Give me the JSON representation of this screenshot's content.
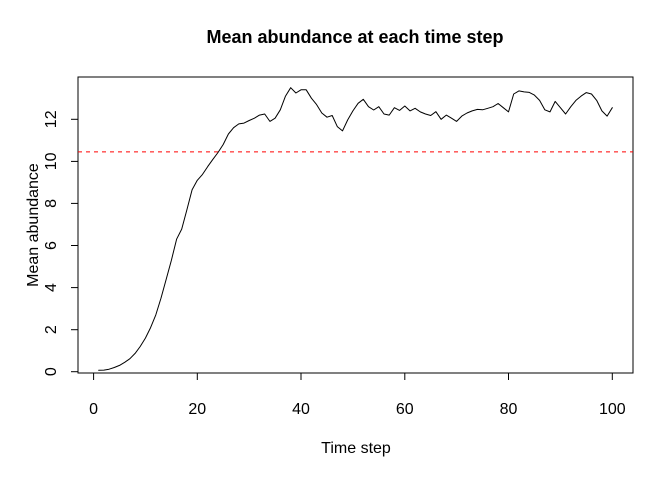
{
  "figure": {
    "background": "#FFFFFF",
    "text_color": "#000000"
  },
  "chart_data": {
    "type": "line",
    "title": "Mean abundance at each time step",
    "xlabel": "Time step",
    "ylabel": "Mean abundance",
    "x_ticks": [
      0,
      20,
      40,
      60,
      80,
      100
    ],
    "y_ticks": [
      0,
      2,
      4,
      6,
      8,
      10,
      12
    ],
    "xlim": [
      -3,
      104
    ],
    "ylim": [
      -0.06,
      14.01
    ],
    "grid": false,
    "box": true,
    "series": [
      {
        "name": "mean abundance",
        "color": "#000000",
        "line_style": "solid",
        "x": [
          1,
          2,
          3,
          4,
          5,
          6,
          7,
          8,
          9,
          10,
          11,
          12,
          13,
          14,
          15,
          16,
          17,
          18,
          19,
          20,
          21,
          22,
          23,
          24,
          25,
          26,
          27,
          28,
          29,
          30,
          31,
          32,
          33,
          34,
          35,
          36,
          37,
          38,
          39,
          40,
          41,
          42,
          43,
          44,
          45,
          46,
          47,
          48,
          49,
          50,
          51,
          52,
          53,
          54,
          55,
          56,
          57,
          58,
          59,
          60,
          61,
          62,
          63,
          64,
          65,
          66,
          67,
          68,
          69,
          70,
          71,
          72,
          73,
          74,
          75,
          76,
          77,
          78,
          79,
          80,
          81,
          82,
          83,
          84,
          85,
          86,
          87,
          88,
          89,
          90,
          91,
          92,
          93,
          94,
          95,
          96,
          97,
          98,
          99,
          100
        ],
        "y": [
          0.07,
          0.08,
          0.12,
          0.2,
          0.3,
          0.45,
          0.62,
          0.87,
          1.2,
          1.6,
          2.1,
          2.7,
          3.5,
          4.4,
          5.3,
          6.3,
          6.78,
          7.7,
          8.65,
          9.1,
          9.38,
          9.75,
          10.1,
          10.42,
          10.8,
          11.3,
          11.6,
          11.78,
          11.82,
          11.94,
          12.05,
          12.2,
          12.25,
          11.9,
          12.05,
          12.45,
          13.1,
          13.5,
          13.25,
          13.4,
          13.4,
          13.0,
          12.7,
          12.3,
          12.1,
          12.18,
          11.65,
          11.45,
          11.97,
          12.4,
          12.76,
          12.95,
          12.6,
          12.44,
          12.6,
          12.25,
          12.2,
          12.55,
          12.42,
          12.63,
          12.4,
          12.52,
          12.35,
          12.25,
          12.18,
          12.36,
          12.0,
          12.2,
          12.05,
          11.9,
          12.15,
          12.3,
          12.4,
          12.47,
          12.45,
          12.52,
          12.6,
          12.75,
          12.55,
          12.35,
          13.2,
          13.35,
          13.3,
          13.28,
          13.15,
          12.9,
          12.45,
          12.35,
          12.85,
          12.55,
          12.25,
          12.6,
          12.9,
          13.1,
          13.27,
          13.2,
          12.9,
          12.4,
          12.15,
          12.55
        ]
      }
    ],
    "reference_line": {
      "value": 10.45,
      "color": "#FF0000",
      "line_style": "dashed"
    }
  }
}
